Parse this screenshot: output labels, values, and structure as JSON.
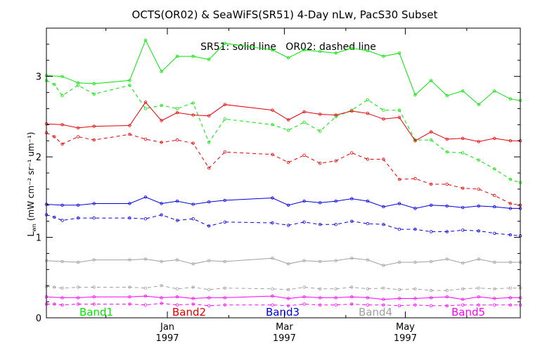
{
  "chart_data": {
    "type": "line",
    "title": "OCTS(OR02) & SeaWiFS(SR51) 4-Day nLw, PacS30 Subset",
    "subtitle": "SR51: solid line   OR02: dashed line",
    "ylabel": {
      "base": "L",
      "sub": "wn",
      "units": "(mW cm⁻² sr⁻¹ um⁻¹)"
    },
    "xlim": [
      "1996-11-01",
      "1997-06-28"
    ],
    "ylim": [
      0,
      3.6
    ],
    "yticks": [
      0,
      1,
      2,
      3
    ],
    "xticks": [
      {
        "date": "1997-01-01",
        "label": "Jan",
        "year": "1997"
      },
      {
        "date": "1997-03-01",
        "label": "Mar",
        "year": "1997"
      },
      {
        "date": "1997-05-01",
        "label": "May",
        "year": "1997"
      }
    ],
    "bands": [
      {
        "name": "Band1",
        "color": "#00e600"
      },
      {
        "name": "Band2",
        "color": "#e60000"
      },
      {
        "name": "Band3",
        "color": "#0000e6"
      },
      {
        "name": "Band4",
        "color": "#a0a0a0"
      },
      {
        "name": "Band5",
        "color": "#ff00ff"
      }
    ],
    "series": [
      {
        "band": 0,
        "sensor": "SR51",
        "style": "solid",
        "x": [
          "1996-11-01",
          "1996-11-09",
          "1996-11-17",
          "1996-11-25",
          "1996-12-13",
          "1996-12-21",
          "1996-12-29",
          "1997-01-06",
          "1997-01-14",
          "1997-01-22",
          "1997-01-30",
          "1997-02-23",
          "1997-03-03",
          "1997-03-11",
          "1997-03-19",
          "1997-03-27",
          "1997-04-04",
          "1997-04-12",
          "1997-04-20",
          "1997-04-28",
          "1997-05-06",
          "1997-05-14",
          "1997-05-22",
          "1997-05-30",
          "1997-06-07",
          "1997-06-15",
          "1997-06-23",
          "1997-06-28"
        ],
        "y": [
          3.01,
          3.0,
          2.92,
          2.91,
          2.95,
          3.45,
          3.06,
          3.25,
          3.25,
          3.21,
          3.41,
          3.33,
          3.23,
          3.33,
          3.31,
          3.29,
          3.35,
          3.32,
          3.25,
          3.29,
          2.77,
          2.95,
          2.76,
          2.82,
          2.65,
          2.82,
          2.72,
          2.7
        ]
      },
      {
        "band": 0,
        "sensor": "OR02",
        "style": "dashed",
        "x": [
          "1996-11-01",
          "1996-11-05",
          "1996-11-09",
          "1996-11-17",
          "1996-11-25",
          "1996-12-13",
          "1996-12-21",
          "1996-12-29",
          "1997-01-06",
          "1997-01-14",
          "1997-01-22",
          "1997-01-30",
          "1997-02-23",
          "1997-03-03",
          "1997-03-11",
          "1997-03-19",
          "1997-03-27",
          "1997-04-04",
          "1997-04-12",
          "1997-04-20",
          "1997-04-28",
          "1997-05-06",
          "1997-05-14",
          "1997-05-22",
          "1997-05-30",
          "1997-06-07",
          "1997-06-15",
          "1997-06-23",
          "1997-06-28"
        ],
        "y": [
          2.95,
          2.9,
          2.76,
          2.89,
          2.78,
          2.89,
          2.6,
          2.64,
          2.6,
          2.67,
          2.18,
          2.47,
          2.4,
          2.33,
          2.43,
          2.32,
          2.5,
          2.58,
          2.71,
          2.58,
          2.58,
          2.21,
          2.21,
          2.06,
          2.05,
          1.96,
          1.85,
          1.72,
          1.68
        ]
      },
      {
        "band": 1,
        "sensor": "SR51",
        "style": "solid",
        "x": [
          "1996-11-01",
          "1996-11-09",
          "1996-11-17",
          "1996-11-25",
          "1996-12-13",
          "1996-12-21",
          "1996-12-29",
          "1997-01-06",
          "1997-01-14",
          "1997-01-22",
          "1997-01-30",
          "1997-02-23",
          "1997-03-03",
          "1997-03-11",
          "1997-03-19",
          "1997-03-27",
          "1997-04-04",
          "1997-04-12",
          "1997-04-20",
          "1997-04-28",
          "1997-05-06",
          "1997-05-14",
          "1997-05-22",
          "1997-05-30",
          "1997-06-07",
          "1997-06-15",
          "1997-06-23",
          "1997-06-28"
        ],
        "y": [
          2.41,
          2.4,
          2.36,
          2.38,
          2.39,
          2.68,
          2.45,
          2.55,
          2.52,
          2.51,
          2.65,
          2.58,
          2.46,
          2.56,
          2.53,
          2.52,
          2.57,
          2.54,
          2.47,
          2.49,
          2.2,
          2.31,
          2.22,
          2.23,
          2.19,
          2.23,
          2.2,
          2.2
        ]
      },
      {
        "band": 1,
        "sensor": "OR02",
        "style": "dashed",
        "x": [
          "1996-11-01",
          "1996-11-05",
          "1996-11-09",
          "1996-11-17",
          "1996-11-25",
          "1996-12-13",
          "1996-12-21",
          "1996-12-29",
          "1997-01-06",
          "1997-01-14",
          "1997-01-22",
          "1997-01-30",
          "1997-02-23",
          "1997-03-03",
          "1997-03-11",
          "1997-03-19",
          "1997-03-27",
          "1997-04-04",
          "1997-04-12",
          "1997-04-20",
          "1997-04-28",
          "1997-05-06",
          "1997-05-14",
          "1997-05-22",
          "1997-05-30",
          "1997-06-07",
          "1997-06-15",
          "1997-06-23",
          "1997-06-28"
        ],
        "y": [
          2.3,
          2.25,
          2.16,
          2.25,
          2.21,
          2.28,
          2.22,
          2.18,
          2.21,
          2.17,
          1.86,
          2.06,
          2.03,
          1.93,
          2.02,
          1.92,
          1.95,
          2.05,
          1.97,
          1.97,
          1.72,
          1.73,
          1.66,
          1.66,
          1.61,
          1.6,
          1.52,
          1.42,
          1.4
        ]
      },
      {
        "band": 2,
        "sensor": "SR51",
        "style": "solid",
        "x": [
          "1996-11-01",
          "1996-11-09",
          "1996-11-17",
          "1996-11-25",
          "1996-12-13",
          "1996-12-21",
          "1996-12-29",
          "1997-01-06",
          "1997-01-14",
          "1997-01-22",
          "1997-01-30",
          "1997-02-23",
          "1997-03-03",
          "1997-03-11",
          "1997-03-19",
          "1997-03-27",
          "1997-04-04",
          "1997-04-12",
          "1997-04-20",
          "1997-04-28",
          "1997-05-06",
          "1997-05-14",
          "1997-05-22",
          "1997-05-30",
          "1997-06-07",
          "1997-06-15",
          "1997-06-23",
          "1997-06-28"
        ],
        "y": [
          1.41,
          1.4,
          1.4,
          1.42,
          1.42,
          1.5,
          1.42,
          1.45,
          1.41,
          1.44,
          1.46,
          1.49,
          1.4,
          1.45,
          1.43,
          1.45,
          1.48,
          1.45,
          1.38,
          1.42,
          1.36,
          1.4,
          1.39,
          1.37,
          1.39,
          1.38,
          1.36,
          1.36
        ]
      },
      {
        "band": 2,
        "sensor": "OR02",
        "style": "dashed",
        "x": [
          "1996-11-01",
          "1996-11-05",
          "1996-11-09",
          "1996-11-17",
          "1996-11-25",
          "1996-12-13",
          "1996-12-21",
          "1996-12-29",
          "1997-01-06",
          "1997-01-14",
          "1997-01-22",
          "1997-01-30",
          "1997-02-23",
          "1997-03-03",
          "1997-03-11",
          "1997-03-19",
          "1997-03-27",
          "1997-04-04",
          "1997-04-12",
          "1997-04-20",
          "1997-04-28",
          "1997-05-06",
          "1997-05-14",
          "1997-05-22",
          "1997-05-30",
          "1997-06-07",
          "1997-06-15",
          "1997-06-23",
          "1997-06-28"
        ],
        "y": [
          1.28,
          1.25,
          1.21,
          1.24,
          1.24,
          1.24,
          1.23,
          1.28,
          1.21,
          1.23,
          1.14,
          1.19,
          1.18,
          1.15,
          1.19,
          1.16,
          1.16,
          1.2,
          1.17,
          1.16,
          1.1,
          1.1,
          1.07,
          1.07,
          1.09,
          1.08,
          1.05,
          1.03,
          1.02
        ]
      },
      {
        "band": 3,
        "sensor": "SR51",
        "style": "solid",
        "x": [
          "1996-11-01",
          "1996-11-09",
          "1996-11-17",
          "1996-11-25",
          "1996-12-13",
          "1996-12-21",
          "1996-12-29",
          "1997-01-06",
          "1997-01-14",
          "1997-01-22",
          "1997-01-30",
          "1997-02-23",
          "1997-03-03",
          "1997-03-11",
          "1997-03-19",
          "1997-03-27",
          "1997-04-04",
          "1997-04-12",
          "1997-04-20",
          "1997-04-28",
          "1997-05-06",
          "1997-05-14",
          "1997-05-22",
          "1997-05-30",
          "1997-06-07",
          "1997-06-15",
          "1997-06-23",
          "1997-06-28"
        ],
        "y": [
          0.71,
          0.7,
          0.69,
          0.72,
          0.72,
          0.73,
          0.7,
          0.72,
          0.67,
          0.71,
          0.7,
          0.74,
          0.67,
          0.71,
          0.7,
          0.71,
          0.74,
          0.72,
          0.65,
          0.69,
          0.69,
          0.7,
          0.73,
          0.68,
          0.73,
          0.69,
          0.69,
          0.69
        ]
      },
      {
        "band": 3,
        "sensor": "OR02",
        "style": "dashed",
        "x": [
          "1996-11-01",
          "1996-11-05",
          "1996-11-09",
          "1996-11-17",
          "1996-11-25",
          "1996-12-13",
          "1996-12-21",
          "1996-12-29",
          "1997-01-06",
          "1997-01-14",
          "1997-01-22",
          "1997-01-30",
          "1997-02-23",
          "1997-03-03",
          "1997-03-11",
          "1997-03-19",
          "1997-03-27",
          "1997-04-04",
          "1997-04-12",
          "1997-04-20",
          "1997-04-28",
          "1997-05-06",
          "1997-05-14",
          "1997-05-22",
          "1997-05-30",
          "1997-06-07",
          "1997-06-15",
          "1997-06-23",
          "1997-06-28"
        ],
        "y": [
          0.39,
          0.38,
          0.37,
          0.38,
          0.38,
          0.38,
          0.37,
          0.4,
          0.36,
          0.38,
          0.35,
          0.37,
          0.36,
          0.35,
          0.38,
          0.36,
          0.36,
          0.38,
          0.36,
          0.37,
          0.35,
          0.36,
          0.34,
          0.34,
          0.36,
          0.37,
          0.36,
          0.37,
          0.37
        ]
      },
      {
        "band": 4,
        "sensor": "SR51",
        "style": "solid",
        "x": [
          "1996-11-01",
          "1996-11-09",
          "1996-11-17",
          "1996-11-25",
          "1996-12-13",
          "1996-12-21",
          "1996-12-29",
          "1997-01-06",
          "1997-01-14",
          "1997-01-22",
          "1997-01-30",
          "1997-02-23",
          "1997-03-03",
          "1997-03-11",
          "1997-03-19",
          "1997-03-27",
          "1997-04-04",
          "1997-04-12",
          "1997-04-20",
          "1997-04-28",
          "1997-05-06",
          "1997-05-14",
          "1997-05-22",
          "1997-05-30",
          "1997-06-07",
          "1997-06-15",
          "1997-06-23",
          "1997-06-28"
        ],
        "y": [
          0.26,
          0.25,
          0.25,
          0.26,
          0.26,
          0.27,
          0.25,
          0.26,
          0.24,
          0.25,
          0.25,
          0.27,
          0.24,
          0.26,
          0.25,
          0.25,
          0.26,
          0.25,
          0.23,
          0.24,
          0.24,
          0.25,
          0.26,
          0.23,
          0.26,
          0.24,
          0.25,
          0.25
        ]
      },
      {
        "band": 4,
        "sensor": "OR02",
        "style": "dashed",
        "x": [
          "1996-11-01",
          "1996-11-05",
          "1996-11-09",
          "1996-11-17",
          "1996-11-25",
          "1996-12-13",
          "1996-12-21",
          "1996-12-29",
          "1997-01-06",
          "1997-01-14",
          "1997-01-22",
          "1997-01-30",
          "1997-02-23",
          "1997-03-03",
          "1997-03-11",
          "1997-03-19",
          "1997-03-27",
          "1997-04-04",
          "1997-04-12",
          "1997-04-20",
          "1997-04-28",
          "1997-05-06",
          "1997-05-14",
          "1997-05-22",
          "1997-05-30",
          "1997-06-07",
          "1997-06-15",
          "1997-06-23",
          "1997-06-28"
        ],
        "y": [
          0.17,
          0.17,
          0.16,
          0.17,
          0.17,
          0.17,
          0.16,
          0.18,
          0.16,
          0.17,
          0.15,
          0.16,
          0.16,
          0.15,
          0.17,
          0.16,
          0.16,
          0.17,
          0.16,
          0.16,
          0.15,
          0.16,
          0.15,
          0.15,
          0.16,
          0.16,
          0.16,
          0.16,
          0.16
        ]
      }
    ]
  }
}
